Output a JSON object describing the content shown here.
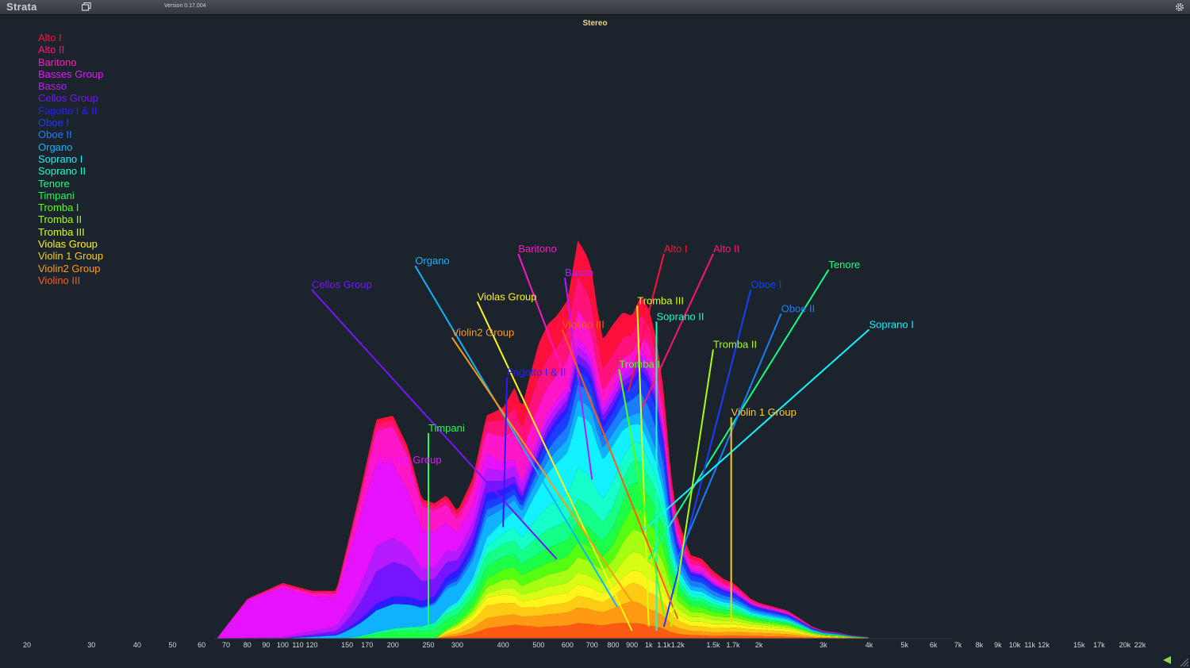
{
  "app": {
    "name": "Strata",
    "version": "Version 0.17.004"
  },
  "chart_data": {
    "type": "area",
    "title": "Stereo",
    "xscale": "log",
    "xlim": [
      20,
      22000
    ],
    "x_ticks": [
      "20",
      "30",
      "40",
      "50",
      "60",
      "70",
      "80",
      "90",
      "100",
      "110",
      "120",
      "150",
      "170",
      "200",
      "250",
      "300",
      "400",
      "500",
      "600",
      "700",
      "800",
      "900",
      "1k",
      "1.1k",
      "1.2k",
      "1.5k",
      "1.7k",
      "2k",
      "3k",
      "4k",
      "5k",
      "6k",
      "7k",
      "8k",
      "9k",
      "10k",
      "11k",
      "12k",
      "15k",
      "17k",
      "20k",
      "22k"
    ],
    "x_tick_values": [
      20,
      30,
      40,
      50,
      60,
      70,
      80,
      90,
      100,
      110,
      120,
      150,
      170,
      200,
      250,
      300,
      400,
      500,
      600,
      700,
      800,
      900,
      1000,
      1100,
      1200,
      1500,
      1700,
      2000,
      3000,
      4000,
      5000,
      6000,
      7000,
      8000,
      9000,
      10000,
      11000,
      12000,
      15000,
      17000,
      20000,
      22000
    ],
    "envelope_freq": [
      66,
      80,
      100,
      120,
      140,
      160,
      180,
      200,
      220,
      240,
      260,
      280,
      300,
      330,
      360,
      400,
      430,
      450,
      480,
      500,
      530,
      560,
      600,
      640,
      680,
      700,
      720,
      750,
      800,
      850,
      900,
      950,
      1000,
      1050,
      1100,
      1150,
      1200,
      1300,
      1400,
      1500,
      1600,
      1700,
      1800,
      1900,
      2000,
      2200,
      2400,
      2600,
      2800,
      3000,
      3300,
      3600,
      4000,
      4500,
      5000,
      5500,
      6000
    ],
    "envelope_total": [
      0,
      0.1,
      0.14,
      0.12,
      0.12,
      0.34,
      0.55,
      0.56,
      0.48,
      0.35,
      0.34,
      0.36,
      0.32,
      0.4,
      0.56,
      0.58,
      0.63,
      0.58,
      0.68,
      0.74,
      0.79,
      0.81,
      0.85,
      1.0,
      0.96,
      0.92,
      0.84,
      0.75,
      0.79,
      0.82,
      0.81,
      0.86,
      0.83,
      0.75,
      0.62,
      0.41,
      0.3,
      0.21,
      0.2,
      0.17,
      0.15,
      0.14,
      0.12,
      0.1,
      0.09,
      0.08,
      0.07,
      0.05,
      0.03,
      0.02,
      0.015,
      0.008,
      0.004,
      0.003,
      0.001,
      0,
      0
    ],
    "series": [
      {
        "name": "Alto I",
        "color": "#ff0f3c"
      },
      {
        "name": "Alto II",
        "color": "#ff137a"
      },
      {
        "name": "Baritono",
        "color": "#ff16c8"
      },
      {
        "name": "Basses Group",
        "color": "#e612ff"
      },
      {
        "name": "Basso",
        "color": "#b61aff"
      },
      {
        "name": "Cellos Group",
        "color": "#7614ff"
      },
      {
        "name": "Fagotto I & II",
        "color": "#2a1dff"
      },
      {
        "name": "Oboe I",
        "color": "#1a3dff"
      },
      {
        "name": "Oboe II",
        "color": "#1a7cff"
      },
      {
        "name": "Organo",
        "color": "#0fb2ff"
      },
      {
        "name": "Soprano I",
        "color": "#12f1ff"
      },
      {
        "name": "Soprano II",
        "color": "#14ffc9"
      },
      {
        "name": "Tenore",
        "color": "#14ff87"
      },
      {
        "name": "Timpani",
        "color": "#1cff46"
      },
      {
        "name": "Tromba I",
        "color": "#55ff12"
      },
      {
        "name": "Tromba II",
        "color": "#a6ff12"
      },
      {
        "name": "Tromba III",
        "color": "#d6ff14"
      },
      {
        "name": "Violas Group",
        "color": "#fff51a"
      },
      {
        "name": "Violin 1 Group",
        "color": "#ffcc14"
      },
      {
        "name": "Violin2 Group",
        "color": "#ff9a12"
      },
      {
        "name": "Violino III",
        "color": "#ff5a14"
      }
    ],
    "band_shares": [
      {
        "name": "Alto I",
        "share": [
          0,
          0.02,
          0.03,
          0.02,
          0.02,
          0.02,
          0.03,
          0.03,
          0.06,
          0.1,
          0.12,
          0.1,
          0.09,
          0.1,
          0.1,
          0.06,
          0.05,
          0.04,
          0.04,
          0.02,
          0,
          0
        ]
      },
      {
        "name": "Alto II",
        "share": [
          0,
          0.02,
          0.03,
          0.03,
          0.03,
          0.03,
          0.04,
          0.05,
          0.08,
          0.11,
          0.1,
          0.09,
          0.09,
          0.08,
          0.07,
          0.06,
          0.06,
          0.06,
          0.05,
          0.03,
          0,
          0
        ]
      },
      {
        "name": "Baritono",
        "share": [
          0,
          0.05,
          0.08,
          0.15,
          0.18,
          0.15,
          0.1,
          0.1,
          0.12,
          0.13,
          0.1,
          0.08,
          0.08,
          0.06,
          0.04,
          0.03,
          0.05,
          0.06,
          0.06,
          0.04,
          0,
          0
        ]
      },
      {
        "name": "Basses Group",
        "share": [
          1,
          0.88,
          0.6,
          0.38,
          0.3,
          0.25,
          0.15,
          0.08,
          0.04,
          0.02,
          0.02,
          0.02,
          0.02,
          0.02,
          0.02,
          0.02,
          0.02,
          0.02,
          0.02,
          0.02,
          0,
          0
        ]
      },
      {
        "name": "Basso",
        "share": [
          0,
          0.03,
          0.1,
          0.12,
          0.1,
          0.08,
          0.07,
          0.06,
          0.05,
          0.04,
          0.03,
          0.02,
          0.02,
          0.02,
          0.02,
          0.02,
          0.02,
          0.02,
          0.02,
          0.02,
          0,
          0
        ]
      },
      {
        "name": "Cellos Group",
        "share": [
          0,
          0,
          0.07,
          0.15,
          0.16,
          0.12,
          0.08,
          0.06,
          0.04,
          0.02,
          0.02,
          0.02,
          0.02,
          0.02,
          0.02,
          0.02,
          0.02,
          0.02,
          0.02,
          0.02,
          0,
          0
        ]
      },
      {
        "name": "Fagotto I & II",
        "share": [
          0,
          0,
          0.02,
          0.03,
          0.04,
          0.04,
          0.05,
          0.04,
          0.03,
          0.02,
          0.02,
          0.02,
          0.02,
          0.02,
          0.02,
          0.02,
          0.02,
          0.02,
          0.02,
          0.02,
          0,
          0
        ]
      },
      {
        "name": "Oboe I",
        "share": [
          0,
          0,
          0,
          0,
          0,
          0.01,
          0.03,
          0.04,
          0.03,
          0.02,
          0.03,
          0.04,
          0.04,
          0.03,
          0.03,
          0.04,
          0.06,
          0.06,
          0.06,
          0.05,
          0,
          0
        ]
      },
      {
        "name": "Oboe II",
        "share": [
          0,
          0,
          0,
          0,
          0,
          0.01,
          0.03,
          0.04,
          0.03,
          0.02,
          0.03,
          0.04,
          0.04,
          0.04,
          0.04,
          0.05,
          0.07,
          0.07,
          0.06,
          0.05,
          0,
          0
        ]
      },
      {
        "name": "Organo",
        "share": [
          0,
          0,
          0.07,
          0.1,
          0.12,
          0.13,
          0.14,
          0.1,
          0.06,
          0.04,
          0.04,
          0.04,
          0.04,
          0.04,
          0.04,
          0.03,
          0.04,
          0.05,
          0.05,
          0.05,
          0,
          0
        ]
      },
      {
        "name": "Soprano I",
        "share": [
          0,
          0,
          0,
          0,
          0,
          0,
          0.02,
          0.04,
          0.06,
          0.08,
          0.1,
          0.12,
          0.13,
          0.15,
          0.12,
          0.06,
          0.05,
          0.04,
          0.04,
          0.03,
          0,
          0
        ]
      },
      {
        "name": "Soprano II",
        "share": [
          0,
          0,
          0,
          0,
          0,
          0.01,
          0.03,
          0.04,
          0.05,
          0.06,
          0.07,
          0.08,
          0.08,
          0.08,
          0.08,
          0.06,
          0.05,
          0.04,
          0.04,
          0.04,
          0,
          0
        ]
      },
      {
        "name": "Tenore",
        "share": [
          0,
          0,
          0,
          0.01,
          0.02,
          0.04,
          0.05,
          0.06,
          0.06,
          0.06,
          0.06,
          0.06,
          0.06,
          0.06,
          0.07,
          0.07,
          0.06,
          0.05,
          0.05,
          0.05,
          0,
          0
        ]
      },
      {
        "name": "Timpani",
        "share": [
          0,
          0,
          0,
          0.02,
          0.04,
          0.06,
          0.06,
          0.06,
          0.06,
          0.05,
          0.05,
          0.05,
          0.05,
          0.05,
          0.06,
          0.08,
          0.08,
          0.07,
          0.06,
          0.05,
          0,
          0
        ]
      },
      {
        "name": "Tromba I",
        "share": [
          0,
          0,
          0,
          0,
          0,
          0,
          0.02,
          0.04,
          0.05,
          0.05,
          0.04,
          0.04,
          0.04,
          0.04,
          0.05,
          0.07,
          0.06,
          0.06,
          0.06,
          0.06,
          0,
          0
        ]
      },
      {
        "name": "Tromba II",
        "share": [
          0,
          0,
          0,
          0,
          0,
          0,
          0.01,
          0.03,
          0.04,
          0.04,
          0.04,
          0.04,
          0.04,
          0.04,
          0.05,
          0.07,
          0.06,
          0.06,
          0.06,
          0.06,
          0,
          0
        ]
      },
      {
        "name": "Tromba III",
        "share": [
          0,
          0,
          0,
          0,
          0,
          0,
          0.01,
          0.02,
          0.03,
          0.03,
          0.03,
          0.03,
          0.03,
          0.03,
          0.04,
          0.06,
          0.05,
          0.05,
          0.06,
          0.06,
          0,
          0
        ]
      },
      {
        "name": "Violas Group",
        "share": [
          0,
          0,
          0,
          0,
          0,
          0,
          0.02,
          0.04,
          0.04,
          0.03,
          0.03,
          0.03,
          0.03,
          0.03,
          0.03,
          0.04,
          0.04,
          0.05,
          0.06,
          0.07,
          0,
          0
        ]
      },
      {
        "name": "Violin 1 Group",
        "share": [
          0,
          0,
          0,
          0,
          0,
          0,
          0.03,
          0.06,
          0.06,
          0.04,
          0.03,
          0.03,
          0.03,
          0.03,
          0.04,
          0.06,
          0.05,
          0.06,
          0.06,
          0.09,
          0,
          0
        ]
      },
      {
        "name": "Violin2 Group",
        "share": [
          0,
          0,
          0,
          0,
          0,
          0,
          0.02,
          0.05,
          0.05,
          0.04,
          0.04,
          0.04,
          0.04,
          0.04,
          0.05,
          0.07,
          0.05,
          0.05,
          0.05,
          0.09,
          0,
          0
        ]
      },
      {
        "name": "Violino III",
        "share": [
          0,
          0,
          0,
          0,
          0,
          0,
          0.02,
          0.05,
          0.06,
          0.06,
          0.04,
          0.04,
          0.04,
          0.04,
          0.05,
          0.05,
          0.04,
          0.04,
          0.04,
          0.07,
          0,
          0
        ]
      }
    ],
    "band_freq": [
      66,
      100,
      140,
      180,
      220,
      260,
      300,
      360,
      400,
      450,
      500,
      560,
      620,
      700,
      800,
      900,
      1000,
      1200,
      1500,
      2000,
      4000,
      6000
    ],
    "callouts": [
      {
        "name": "Alto I",
        "label_freq": 1100,
        "label_y": 0.99,
        "anchor_freq": 880,
        "anchor_level": 0.62
      },
      {
        "name": "Alto II",
        "label_freq": 1500,
        "label_y": 0.99,
        "anchor_freq": 960,
        "anchor_level": 0.58
      },
      {
        "name": "Baritono",
        "label_freq": 440,
        "label_y": 0.99,
        "anchor_freq": 610,
        "anchor_level": 0.62
      },
      {
        "name": "Organo",
        "label_freq": 230,
        "label_y": 0.96,
        "anchor_freq": 820,
        "anchor_level": 0.08
      },
      {
        "name": "Basso",
        "label_freq": 590,
        "label_y": 0.93,
        "anchor_freq": 700,
        "anchor_level": 0.4
      },
      {
        "name": "Tenore",
        "label_freq": 3100,
        "label_y": 0.95,
        "anchor_freq": 1000,
        "anchor_level": 0.2
      },
      {
        "name": "Cellos Group",
        "label_freq": 120,
        "label_y": 0.9,
        "anchor_freq": 560,
        "anchor_level": 0.2
      },
      {
        "name": "Violas Group",
        "label_freq": 340,
        "label_y": 0.87,
        "anchor_freq": 900,
        "anchor_level": 0.02
      },
      {
        "name": "Oboe I",
        "label_freq": 1900,
        "label_y": 0.9,
        "anchor_freq": 1100,
        "anchor_level": 0.03
      },
      {
        "name": "Tromba III",
        "label_freq": 930,
        "label_y": 0.86,
        "anchor_freq": 1000,
        "anchor_level": 0.03
      },
      {
        "name": "Oboe II",
        "label_freq": 2300,
        "label_y": 0.84,
        "anchor_freq": 1200,
        "anchor_level": 0.2
      },
      {
        "name": "Soprano II",
        "label_freq": 1050,
        "label_y": 0.82,
        "anchor_freq": 1050,
        "anchor_level": 0.02
      },
      {
        "name": "Soprano I",
        "label_freq": 4000,
        "label_y": 0.8,
        "anchor_freq": 960,
        "anchor_level": 0.27
      },
      {
        "name": "Violino III",
        "label_freq": 580,
        "label_y": 0.8,
        "anchor_freq": 1200,
        "anchor_level": 0.05
      },
      {
        "name": "Violin2 Group",
        "label_freq": 290,
        "label_y": 0.78,
        "anchor_freq": 1000,
        "anchor_level": 0.03
      },
      {
        "name": "Tromba II",
        "label_freq": 1500,
        "label_y": 0.75,
        "anchor_freq": 1150,
        "anchor_level": 0.03
      },
      {
        "name": "Fagotto I & II",
        "label_freq": 410,
        "label_y": 0.68,
        "anchor_freq": 400,
        "anchor_level": 0.28
      },
      {
        "name": "Tromba I",
        "label_freq": 830,
        "label_y": 0.7,
        "anchor_freq": 1100,
        "anchor_level": 0.06
      },
      {
        "name": "Violin 1 Group",
        "label_freq": 1680,
        "label_y": 0.58,
        "anchor_freq": 1680,
        "anchor_level": 0.04
      },
      {
        "name": "Timpani",
        "label_freq": 250,
        "label_y": 0.54,
        "anchor_freq": 250,
        "anchor_level": 0.03
      },
      {
        "name": "Basses Group",
        "label_freq": 180,
        "label_y": 0.46,
        "anchor_freq": 195,
        "anchor_level": 0.25
      }
    ]
  }
}
